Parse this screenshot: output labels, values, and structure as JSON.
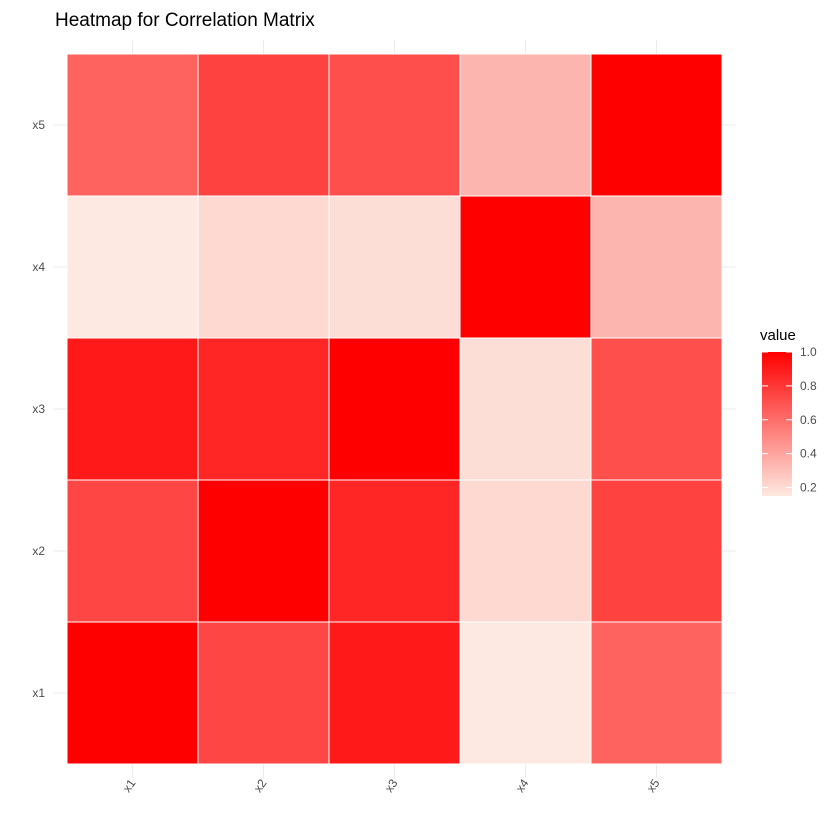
{
  "chart_data": {
    "type": "heatmap",
    "title": "Heatmap for Correlation Matrix",
    "xlabel": "",
    "ylabel": "",
    "x_categories": [
      "x1",
      "x2",
      "x3",
      "x4",
      "x5"
    ],
    "y_categories": [
      "x1",
      "x2",
      "x3",
      "x4",
      "x5"
    ],
    "values": [
      [
        1.0,
        0.74,
        0.91,
        0.15,
        0.64
      ],
      [
        0.74,
        1.0,
        0.86,
        0.21,
        0.76
      ],
      [
        0.91,
        0.86,
        1.0,
        0.19,
        0.71
      ],
      [
        0.15,
        0.21,
        0.19,
        1.0,
        0.34
      ],
      [
        0.64,
        0.76,
        0.71,
        0.34,
        1.0
      ]
    ],
    "color_scale": {
      "low": "#fde9e1",
      "high": "#ff0000",
      "min": 0.15,
      "max": 1.0
    },
    "legend": {
      "title": "value",
      "ticks": [
        "0.2",
        "0.4",
        "0.6",
        "0.8",
        "1.0"
      ],
      "tick_values": [
        0.2,
        0.4,
        0.6,
        0.8,
        1.0
      ],
      "position": "right"
    },
    "grid": true
  }
}
